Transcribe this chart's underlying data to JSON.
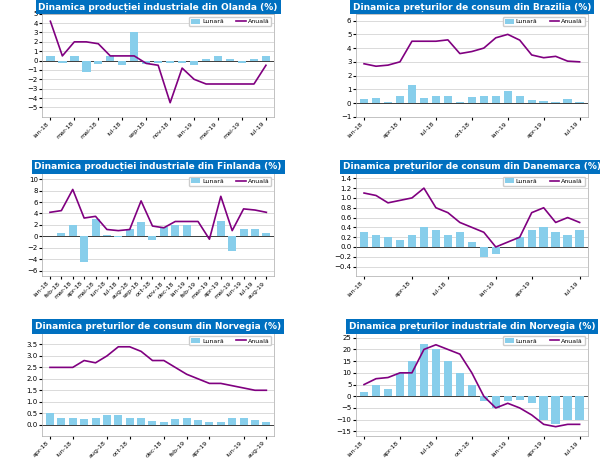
{
  "chart1": {
    "title": "Dinamica producției industriale din Olanda (%)",
    "x_labels": [
      "ian-18",
      "mar-18",
      "mai-18",
      "iul-18",
      "sep-18",
      "nov-18",
      "ian-19",
      "mar-19",
      "mai-19",
      "iul-19"
    ],
    "bar": [
      0.5,
      -0.3,
      0.5,
      -1.2,
      -0.4,
      0.5,
      -0.5,
      3.0,
      -0.4,
      -0.3,
      -0.3,
      -0.3,
      -0.5,
      0.2,
      0.5,
      0.2,
      -0.3,
      0.2,
      0.5
    ],
    "line": [
      4.2,
      0.5,
      2.0,
      2.0,
      1.8,
      0.5,
      0.5,
      0.5,
      -0.3,
      -0.5,
      -4.5,
      -0.8,
      -2.0,
      -2.5,
      -2.5,
      -2.5,
      -2.5,
      -2.5,
      -0.5
    ],
    "ylim": [
      -6,
      5
    ],
    "yticks": [
      -5,
      -4,
      -3,
      -2,
      -1,
      0,
      1,
      2,
      3,
      4,
      5
    ],
    "n": 19
  },
  "chart2": {
    "title": "Dinamica prețurilor de consum din Brazilia (%)",
    "x_labels": [
      "ian-18",
      "apr-18",
      "iul-18",
      "oct-18",
      "ian-19",
      "apr-19",
      "iul-19"
    ],
    "bar": [
      0.29,
      0.4,
      0.09,
      0.5,
      1.3,
      0.4,
      0.5,
      0.5,
      0.1,
      0.45,
      0.5,
      0.5,
      0.87,
      0.5,
      0.2,
      0.15,
      0.1,
      0.3,
      0.1
    ],
    "line": [
      2.86,
      2.68,
      2.76,
      3.0,
      4.5,
      4.5,
      4.5,
      4.6,
      3.6,
      3.75,
      4.0,
      4.75,
      5.0,
      4.58,
      3.5,
      3.3,
      3.4,
      3.05,
      3.0
    ],
    "ylim": [
      -1,
      6.5
    ],
    "yticks": [
      -1,
      0,
      1,
      2,
      3,
      4,
      5,
      6
    ],
    "n": 19
  },
  "chart3": {
    "title": "Dinamica producției industriale din Finlanda (%)",
    "x_labels": [
      "ian-18",
      "feb-18",
      "mar-18",
      "apr-18",
      "mai-18",
      "iun-18",
      "iul-18",
      "aug-18",
      "sep-18",
      "oct-18",
      "nov-18",
      "dec-18",
      "ian-19",
      "feb-19",
      "mar-19",
      "apr-19",
      "mai-19",
      "iun-19",
      "iul-19",
      "aug-19"
    ],
    "bar": [
      0.1,
      0.5,
      2.0,
      -4.5,
      3.0,
      0.3,
      -0.2,
      1.2,
      2.5,
      -0.7,
      1.6,
      1.9,
      2.0,
      0.1,
      0.1,
      2.6,
      -2.5,
      1.2,
      1.2,
      0.5
    ],
    "line": [
      4.2,
      4.5,
      8.2,
      3.2,
      3.5,
      1.2,
      1.0,
      1.2,
      6.2,
      1.8,
      1.5,
      2.6,
      2.6,
      2.6,
      -0.5,
      7.0,
      1.0,
      4.8,
      4.6,
      4.2
    ],
    "ylim": [
      -7,
      11
    ],
    "yticks": [
      -6,
      -4,
      -2,
      0,
      2,
      4,
      6,
      8,
      10
    ],
    "n": 20
  },
  "chart4": {
    "title": "Dinamica prețurilor de consum din Danemarca (%)",
    "x_labels": [
      "ian-18",
      "apr-18",
      "iul-18",
      "ian-19",
      "apr-19",
      "iul-19"
    ],
    "bar": [
      0.3,
      0.25,
      0.2,
      0.15,
      0.25,
      0.4,
      0.35,
      0.25,
      0.3,
      0.1,
      -0.2,
      -0.15,
      0.0,
      0.2,
      0.35,
      0.4,
      0.3,
      0.25,
      0.35
    ],
    "line": [
      1.1,
      1.05,
      0.9,
      0.95,
      1.0,
      1.2,
      0.8,
      0.7,
      0.5,
      0.4,
      0.3,
      0.0,
      0.1,
      0.2,
      0.7,
      0.8,
      0.5,
      0.6,
      0.5
    ],
    "ylim": [
      -0.6,
      1.5
    ],
    "yticks": [
      -0.4,
      -0.2,
      0.0,
      0.2,
      0.4,
      0.6,
      0.8,
      1.0,
      1.2,
      1.4
    ],
    "n": 19
  },
  "chart5": {
    "title": "Dinamica prețurilor de consum din Norvegia (%)",
    "x_labels": [
      "apr-18",
      "iun-18",
      "aug-18",
      "oct-18",
      "dec-18",
      "feb-19",
      "apr-19",
      "iun-19",
      "aug-19"
    ],
    "bar": [
      0.5,
      0.3,
      0.3,
      0.25,
      0.3,
      0.4,
      0.4,
      0.3,
      0.3,
      0.15,
      0.1,
      0.25,
      0.3,
      0.2,
      0.1,
      0.1,
      0.3,
      0.3,
      0.2,
      0.1
    ],
    "line": [
      2.5,
      2.5,
      2.5,
      2.8,
      2.7,
      3.0,
      3.4,
      3.4,
      3.2,
      2.8,
      2.8,
      2.5,
      2.2,
      2.0,
      1.8,
      1.8,
      1.7,
      1.6,
      1.5,
      1.5
    ],
    "ylim": [
      -0.5,
      4.0
    ],
    "yticks": [
      0,
      0.5,
      1.0,
      1.5,
      2.0,
      2.5,
      3.0,
      3.5
    ],
    "n": 20
  },
  "chart6": {
    "title": "Dinamica prețurilor industriale din Norvegia (%)",
    "x_labels": [
      "ian-18",
      "apr-18",
      "iul-18",
      "oct-18",
      "ian-19",
      "apr-19",
      "iul-19"
    ],
    "bar": [
      2.0,
      5.0,
      3.0,
      10.0,
      15.0,
      22.5,
      20.0,
      15.0,
      10.0,
      5.0,
      -2.0,
      -5.0,
      -2.0,
      -1.5,
      -3.0,
      -10.0,
      -12.0,
      -10.0,
      -10.0
    ],
    "line": [
      5.0,
      7.5,
      8.0,
      10.0,
      10.0,
      20.0,
      22.0,
      20.0,
      18.0,
      10.0,
      0.0,
      -5.0,
      -3.0,
      -5.0,
      -8.0,
      -12.0,
      -13.0,
      -12.0,
      -12.0
    ],
    "ylim": [
      -17,
      27
    ],
    "yticks": [
      -15,
      -10,
      -5,
      0,
      5,
      10,
      15,
      20,
      25
    ],
    "n": 19
  },
  "bar_color": "#87CEEB",
  "line_color": "#800080",
  "title_bg": "#0070C0",
  "title_fg": "#FFFFFF",
  "legend_lunar": "Lunară",
  "legend_anuala": "Anuală"
}
